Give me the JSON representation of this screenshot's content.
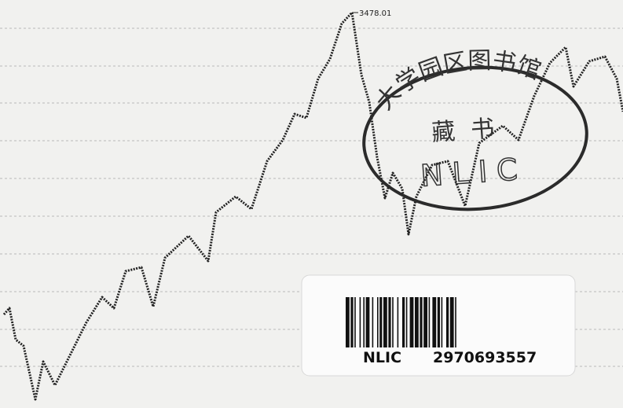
{
  "peak_label": "3478.01",
  "stamp": {
    "text": "大学园区图书馆",
    "center": "藏书",
    "code": "NLIC"
  },
  "barcode": {
    "prefix": "NLIC",
    "number": "2970693557"
  }
}
